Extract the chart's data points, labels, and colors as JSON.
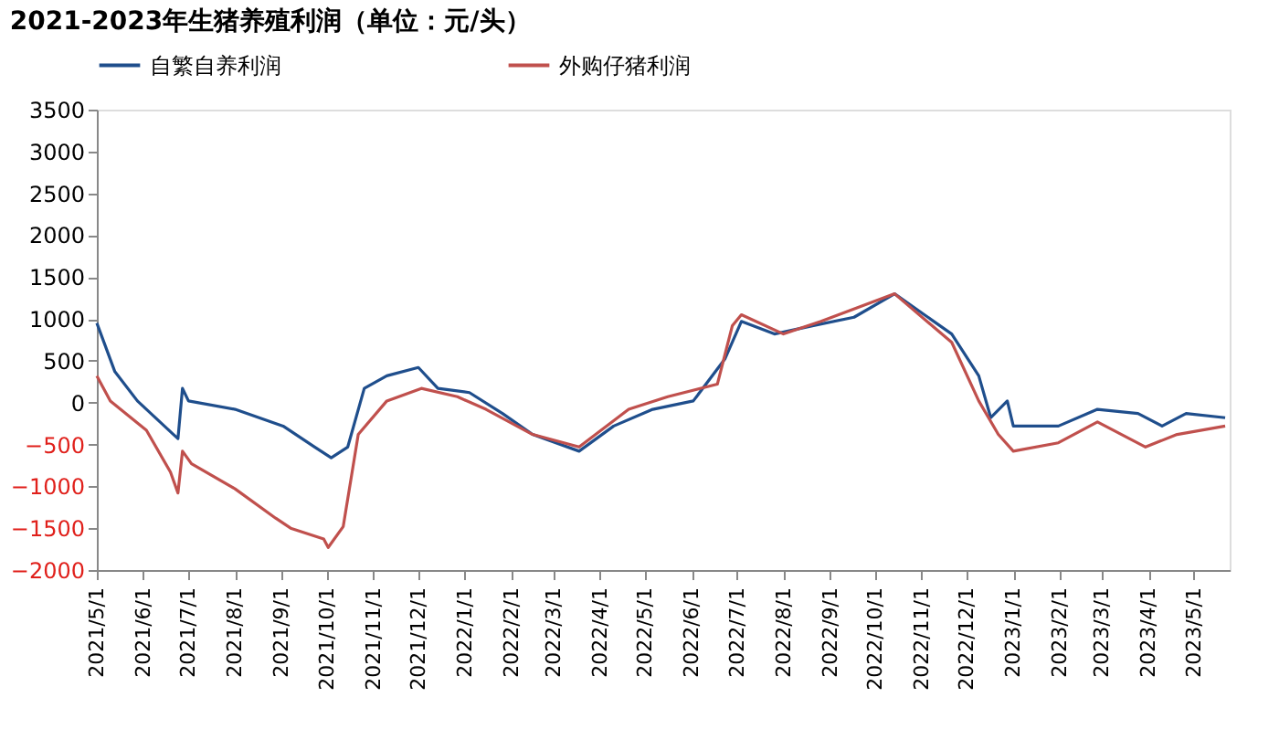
{
  "chart_data": {
    "type": "line",
    "title": "2021-2023年生猪养殖利润（单位：元/头）",
    "xlim": [
      "2021-05-01",
      "2023-05-25"
    ],
    "xticks": [
      {
        "value": "2021-05-01",
        "label": "2021/5/1"
      },
      {
        "value": "2021-06-01",
        "label": "2021/6/1"
      },
      {
        "value": "2021-07-01",
        "label": "2021/7/1"
      },
      {
        "value": "2021-08-01",
        "label": "2021/8/1"
      },
      {
        "value": "2021-09-01",
        "label": "2021/9/1"
      },
      {
        "value": "2021-10-01",
        "label": "2021/10/1"
      },
      {
        "value": "2021-11-01",
        "label": "2021/11/1"
      },
      {
        "value": "2021-12-01",
        "label": "2021/12/1"
      },
      {
        "value": "2022-01-01",
        "label": "2022/1/1"
      },
      {
        "value": "2022-02-01",
        "label": "2022/2/1"
      },
      {
        "value": "2022-03-01",
        "label": "2022/3/1"
      },
      {
        "value": "2022-04-01",
        "label": "2022/4/1"
      },
      {
        "value": "2022-05-01",
        "label": "2022/5/1"
      },
      {
        "value": "2022-06-01",
        "label": "2022/6/1"
      },
      {
        "value": "2022-07-01",
        "label": "2022/7/1"
      },
      {
        "value": "2022-08-01",
        "label": "2022/8/1"
      },
      {
        "value": "2022-09-01",
        "label": "2022/9/1"
      },
      {
        "value": "2022-10-01",
        "label": "2022/10/1"
      },
      {
        "value": "2022-11-01",
        "label": "2022/11/1"
      },
      {
        "value": "2022-12-01",
        "label": "2022/12/1"
      },
      {
        "value": "2023-01-01",
        "label": "2023/1/1"
      },
      {
        "value": "2023-02-01",
        "label": "2023/2/1"
      },
      {
        "value": "2023-03-01",
        "label": "2023/3/1"
      },
      {
        "value": "2023-04-01",
        "label": "2023/4/1"
      },
      {
        "value": "2023-05-01",
        "label": "2023/5/1"
      }
    ],
    "ylim": [
      -2000,
      3500
    ],
    "yticks": [
      -2000,
      -1500,
      -1000,
      -500,
      0,
      500,
      1000,
      1500,
      2000,
      2500,
      3000,
      3500
    ],
    "grid": false,
    "legend": "top",
    "marker": "none",
    "line_style": "solid",
    "series": [
      {
        "name": "自繁自养利润",
        "color": "#1f4e8c",
        "x": [
          "2021-05-01",
          "2021-05-13",
          "2021-05-28",
          "2021-06-21",
          "2021-06-24",
          "2021-06-27",
          "2021-07-01",
          "2021-08-01",
          "2021-09-02",
          "2021-09-23",
          "2021-10-04",
          "2021-10-15",
          "2021-10-26",
          "2021-11-10",
          "2021-12-01",
          "2021-12-14",
          "2022-01-04",
          "2022-01-26",
          "2022-02-15",
          "2022-03-18",
          "2022-04-10",
          "2022-05-06",
          "2022-06-02",
          "2022-06-23",
          "2022-07-04",
          "2022-07-26",
          "2022-08-21",
          "2022-09-17",
          "2022-10-14",
          "2022-11-21",
          "2022-12-09",
          "2022-12-17",
          "2022-12-28",
          "2023-01-01",
          "2023-01-31",
          "2023-02-26",
          "2023-03-25",
          "2023-04-10",
          "2023-04-26",
          "2023-05-22"
        ],
        "values": [
          950,
          370,
          20,
          -380,
          -430,
          170,
          20,
          -80,
          -280,
          -530,
          -660,
          -530,
          170,
          320,
          420,
          170,
          120,
          -130,
          -380,
          -580,
          -280,
          -80,
          20,
          520,
          970,
          820,
          920,
          1020,
          1300,
          820,
          320,
          -180,
          20,
          -280,
          -280,
          -80,
          -130,
          -280,
          -130,
          -180
        ]
      },
      {
        "name": "外购仔猪利润",
        "color": "#c0504d",
        "x": [
          "2021-05-01",
          "2021-05-10",
          "2021-06-03",
          "2021-06-19",
          "2021-06-24",
          "2021-06-27",
          "2021-07-03",
          "2021-08-01",
          "2021-08-28",
          "2021-09-07",
          "2021-09-29",
          "2021-10-02",
          "2021-10-12",
          "2021-10-22",
          "2021-11-10",
          "2021-12-03",
          "2021-12-27",
          "2022-01-15",
          "2022-02-15",
          "2022-03-18",
          "2022-04-20",
          "2022-05-16",
          "2022-06-18",
          "2022-06-28",
          "2022-07-04",
          "2022-08-01",
          "2022-08-26",
          "2022-10-14",
          "2022-11-21",
          "2022-12-09",
          "2022-12-22",
          "2023-01-01",
          "2023-01-31",
          "2023-02-26",
          "2023-03-30",
          "2023-04-20",
          "2023-05-22"
        ],
        "values": [
          320,
          20,
          -330,
          -830,
          -1080,
          -580,
          -730,
          -1030,
          -1380,
          -1500,
          -1630,
          -1730,
          -1480,
          -380,
          20,
          170,
          70,
          -80,
          -380,
          -530,
          -80,
          70,
          220,
          920,
          1050,
          820,
          970,
          1300,
          720,
          20,
          -380,
          -580,
          -480,
          -230,
          -530,
          -380,
          -280
        ]
      }
    ]
  }
}
